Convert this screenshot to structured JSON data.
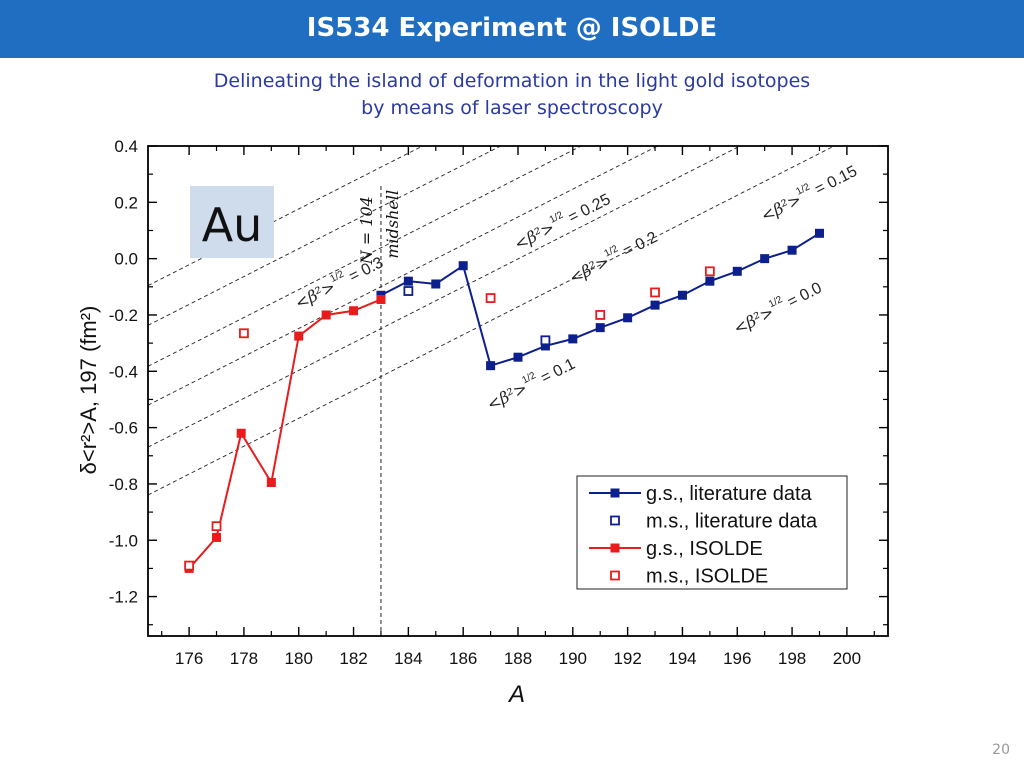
{
  "header": {
    "title": "IS534 Experiment @ ISOLDE"
  },
  "subtitle": {
    "line1": "Delineating the island of deformation in the light gold isotopes",
    "line2": "by means of laser spectroscopy"
  },
  "page_number": "20",
  "colors": {
    "header_bg": "#1f6ec2",
    "subtitle_text": "#2a3aa0",
    "literature": "#0d1f8c",
    "isolde": "#e81c1c",
    "element_box": "#cfdcec"
  },
  "chart_data": {
    "type": "line",
    "element_label": "Au",
    "xlabel": "A",
    "ylabel": "δ<r²>A, 197 (fm²)",
    "xlim": [
      174.5,
      201.5
    ],
    "ylim": [
      -1.34,
      0.4
    ],
    "xticks": [
      "176",
      "178",
      "180",
      "182",
      "184",
      "186",
      "188",
      "190",
      "192",
      "194",
      "196",
      "198",
      "200"
    ],
    "yticks": [
      "0.4",
      "0.2",
      "0.0",
      "-0.2",
      "-0.4",
      "-0.6",
      "-0.8",
      "-1.0",
      "-1.2"
    ],
    "midshell": {
      "x": 183,
      "label": "N = 104",
      "sublabel": "midshell"
    },
    "deformation_lines": [
      {
        "beta": "0.3",
        "label": "= 0.3",
        "anchor_x": 180,
        "anchor_y": -0.18
      },
      {
        "beta": "0.25",
        "label": "= 0.25",
        "anchor_x": 188,
        "anchor_y": 0.03
      },
      {
        "beta": "0.2",
        "label": "= 0.2",
        "anchor_x": 190,
        "anchor_y": -0.09
      },
      {
        "beta": "0.15",
        "label": "= 0.15",
        "anchor_x": 197,
        "anchor_y": 0.13
      },
      {
        "beta": "0.1",
        "label": "= 0.1",
        "anchor_x": 187,
        "anchor_y": -0.54
      },
      {
        "beta": "0.0",
        "label": "= 0.0",
        "anchor_x": 196,
        "anchor_y": -0.27
      }
    ],
    "series": [
      {
        "name": "g.s., literature data",
        "style": "line-filled",
        "x": [
          183,
          184,
          185,
          186,
          187,
          188,
          189,
          190,
          191,
          192,
          193,
          194,
          195,
          196,
          197,
          198,
          199
        ],
        "y": [
          -0.13,
          -0.08,
          -0.09,
          -0.025,
          -0.38,
          -0.35,
          -0.31,
          -0.285,
          -0.245,
          -0.21,
          -0.165,
          -0.13,
          -0.08,
          -0.045,
          0.0,
          0.03,
          0.09
        ]
      },
      {
        "name": "m.s., literature data",
        "style": "open",
        "x": [
          184,
          189
        ],
        "y": [
          -0.115,
          -0.29
        ]
      },
      {
        "name": "g.s., ISOLDE",
        "style": "line-filled",
        "x": [
          176,
          177,
          177.9,
          179,
          180,
          181,
          182,
          183
        ],
        "y": [
          -1.1,
          -0.99,
          -0.62,
          -0.795,
          -0.275,
          -0.2,
          -0.185,
          -0.145
        ]
      },
      {
        "name": "m.s., ISOLDE",
        "style": "open",
        "x": [
          176,
          177,
          178,
          187,
          191,
          193,
          195
        ],
        "y": [
          -1.09,
          -0.95,
          -0.265,
          -0.14,
          -0.2,
          -0.12,
          -0.045
        ]
      }
    ],
    "legend_position": "bottom-right",
    "grid": false
  }
}
